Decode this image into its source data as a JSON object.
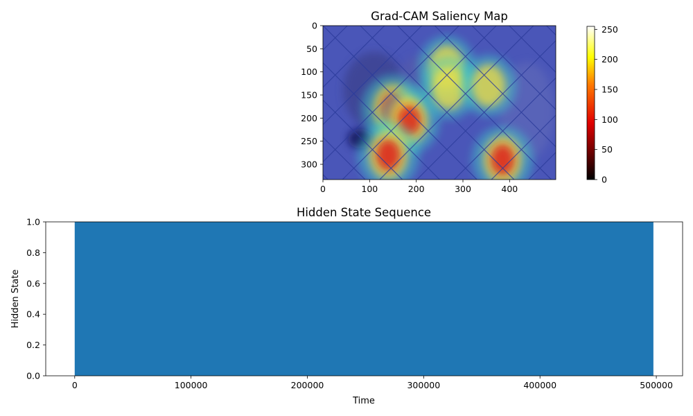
{
  "chart_data": [
    {
      "type": "heatmap",
      "title": "Grad-CAM Saliency Map",
      "xlabel": "",
      "ylabel": "",
      "xlim": [
        0,
        499
      ],
      "ylim": [
        333,
        0
      ],
      "xticks": [
        "0",
        "100",
        "200",
        "300",
        "400"
      ],
      "yticks": [
        "0",
        "50",
        "100",
        "150",
        "200",
        "250",
        "300"
      ],
      "colorbar": {
        "colormap": "hot",
        "range": [
          0,
          255
        ],
        "ticks": [
          "0",
          "50",
          "100",
          "150",
          "200",
          "250"
        ]
      },
      "hotspots": [
        {
          "x": 150,
          "y": 180,
          "intensity": 0.95
        },
        {
          "x": 185,
          "y": 205,
          "intensity": 0.8
        },
        {
          "x": 140,
          "y": 280,
          "intensity": 0.9
        },
        {
          "x": 385,
          "y": 290,
          "intensity": 0.85
        },
        {
          "x": 265,
          "y": 90,
          "intensity": 0.55
        },
        {
          "x": 270,
          "y": 135,
          "intensity": 0.5
        },
        {
          "x": 355,
          "y": 130,
          "intensity": 0.45
        }
      ]
    },
    {
      "type": "area",
      "title": "Hidden State Sequence",
      "xlabel": "Time",
      "ylabel": "Hidden State",
      "xlim": [
        -24900,
        522600
      ],
      "ylim": [
        0,
        1
      ],
      "x": [
        0,
        497500
      ],
      "y": [
        1,
        1
      ],
      "color": "#1f77b4",
      "xticks": [
        "0",
        "100000",
        "200000",
        "300000",
        "400000",
        "500000"
      ],
      "yticks": [
        "0.0",
        "0.2",
        "0.4",
        "0.6",
        "0.8",
        "1.0"
      ]
    }
  ]
}
